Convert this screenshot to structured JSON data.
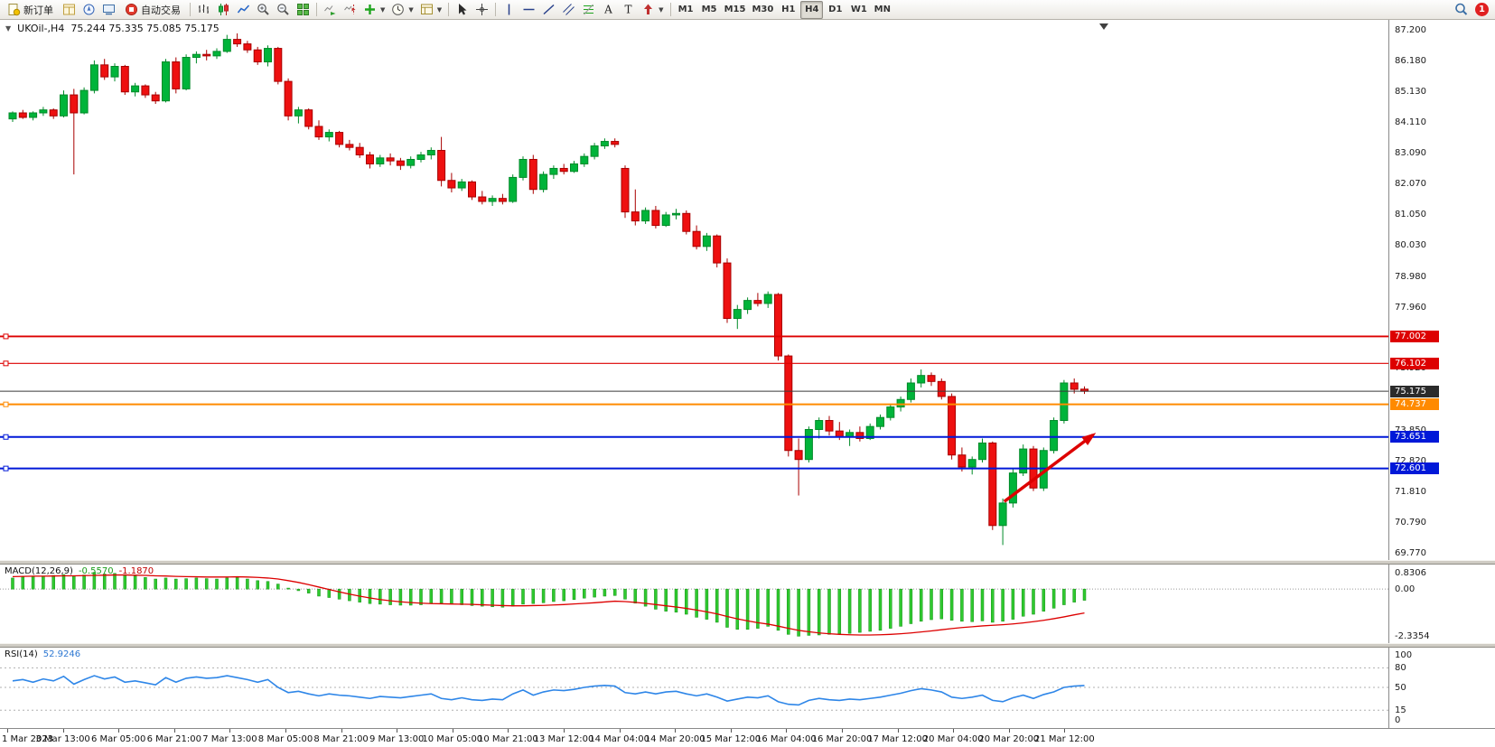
{
  "toolbar": {
    "new_order_label": "新订单",
    "autotrading_label": "自动交易",
    "timeframes": [
      "M1",
      "M5",
      "M15",
      "M30",
      "H1",
      "H4",
      "D1",
      "W1",
      "MN"
    ],
    "active_timeframe": "H4",
    "notification_badge": "1"
  },
  "chart_header": {
    "symbol_period": "UKOil-,H4",
    "ohlc": "75.244 75.335 75.085 75.175"
  },
  "chart_data": {
    "type": "candlestick",
    "symbol": "UKOil-",
    "period": "H4",
    "ylim": [
      69.55,
      87.55
    ],
    "colors": {
      "bull": "#00b43a",
      "bull_stroke": "#008a28",
      "bear": "#ee1010",
      "bear_stroke": "#a80000",
      "arrow": "#dd0000"
    },
    "price_axis_labels": [
      "87.200",
      "86.180",
      "85.130",
      "84.110",
      "83.090",
      "82.070",
      "81.050",
      "80.030",
      "78.980",
      "77.960",
      "76.940",
      "75.920",
      "73.850",
      "72.820",
      "71.810",
      "70.790",
      "69.770"
    ],
    "price_tags": [
      {
        "label": "77.002",
        "value": 77.002,
        "color": "#dd0000"
      },
      {
        "label": "76.102",
        "value": 76.102,
        "color": "#dd0000"
      },
      {
        "label": "75.175",
        "value": 75.175,
        "color": "#2b2b2b"
      },
      {
        "label": "74.737",
        "value": 74.737,
        "color": "#ff8a00"
      },
      {
        "label": "73.651",
        "value": 73.651,
        "color": "#0018d8"
      },
      {
        "label": "72.601",
        "value": 72.601,
        "color": "#0018d8"
      }
    ],
    "hlines": [
      {
        "value": 77.002,
        "color": "#dd0000",
        "width": 1.8
      },
      {
        "value": 76.102,
        "color": "#dd0000",
        "width": 1.2
      },
      {
        "value": 74.737,
        "color": "#ff8a00",
        "width": 2
      },
      {
        "value": 73.651,
        "color": "#0018d8",
        "width": 2
      },
      {
        "value": 72.601,
        "color": "#0018d8",
        "width": 2
      }
    ],
    "current_price_line": {
      "value": 75.175,
      "color": "#3a3a3a"
    },
    "trend_arrow": {
      "from_index": 97.5,
      "from_price": 71.5,
      "to_index": 106.2,
      "to_price": 73.72
    },
    "x_axis_dates": [
      "1 Mar 2023",
      "3 Mar 13:00",
      "6 Mar 05:00",
      "6 Mar 21:00",
      "7 Mar 13:00",
      "8 Mar 05:00",
      "8 Mar 21:00",
      "9 Mar 13:00",
      "10 Mar 05:00",
      "10 Mar 21:00",
      "13 Mar 12:00",
      "14 Mar 04:00",
      "14 Mar 20:00",
      "15 Mar 12:00",
      "16 Mar 04:00",
      "16 Mar 20:00",
      "17 Mar 12:00",
      "20 Mar 04:00",
      "20 Mar 20:00",
      "21 Mar 12:00"
    ],
    "candles": [
      [
        84.25,
        84.5,
        84.15,
        84.45
      ],
      [
        84.45,
        84.55,
        84.25,
        84.3
      ],
      [
        84.3,
        84.5,
        84.2,
        84.45
      ],
      [
        84.45,
        84.65,
        84.35,
        84.55
      ],
      [
        84.55,
        84.6,
        84.25,
        84.35
      ],
      [
        84.35,
        85.2,
        84.3,
        85.05
      ],
      [
        85.05,
        85.25,
        82.4,
        84.45
      ],
      [
        84.45,
        85.3,
        84.4,
        85.2
      ],
      [
        85.2,
        86.2,
        85.1,
        86.05
      ],
      [
        86.05,
        86.25,
        85.55,
        85.65
      ],
      [
        85.65,
        86.1,
        85.5,
        86.0
      ],
      [
        86.0,
        86.05,
        85.05,
        85.15
      ],
      [
        85.15,
        85.45,
        85.0,
        85.35
      ],
      [
        85.35,
        85.4,
        84.95,
        85.05
      ],
      [
        85.05,
        85.15,
        84.75,
        84.85
      ],
      [
        84.85,
        86.25,
        84.8,
        86.15
      ],
      [
        86.15,
        86.3,
        85.1,
        85.25
      ],
      [
        85.25,
        86.4,
        85.2,
        86.3
      ],
      [
        86.3,
        86.5,
        86.1,
        86.4
      ],
      [
        86.4,
        86.55,
        86.2,
        86.35
      ],
      [
        86.35,
        86.6,
        86.25,
        86.5
      ],
      [
        86.5,
        87.05,
        86.45,
        86.9
      ],
      [
        86.9,
        87.1,
        86.65,
        86.75
      ],
      [
        86.75,
        86.85,
        86.45,
        86.55
      ],
      [
        86.55,
        86.65,
        86.05,
        86.15
      ],
      [
        86.15,
        86.7,
        86.0,
        86.6
      ],
      [
        86.6,
        86.65,
        85.4,
        85.5
      ],
      [
        85.5,
        85.6,
        84.2,
        84.35
      ],
      [
        84.35,
        84.65,
        84.1,
        84.55
      ],
      [
        84.55,
        84.6,
        83.9,
        84.0
      ],
      [
        84.0,
        84.2,
        83.55,
        83.65
      ],
      [
        83.65,
        83.9,
        83.5,
        83.8
      ],
      [
        83.8,
        83.85,
        83.3,
        83.4
      ],
      [
        83.4,
        83.55,
        83.2,
        83.3
      ],
      [
        83.3,
        83.45,
        82.95,
        83.05
      ],
      [
        83.05,
        83.15,
        82.6,
        82.75
      ],
      [
        82.75,
        83.05,
        82.65,
        82.95
      ],
      [
        82.95,
        83.1,
        82.7,
        82.85
      ],
      [
        82.85,
        82.95,
        82.55,
        82.7
      ],
      [
        82.7,
        83.0,
        82.6,
        82.9
      ],
      [
        82.9,
        83.15,
        82.8,
        83.05
      ],
      [
        83.05,
        83.3,
        82.9,
        83.2
      ],
      [
        83.2,
        83.65,
        82.0,
        82.2
      ],
      [
        82.2,
        82.45,
        81.8,
        81.95
      ],
      [
        81.95,
        82.25,
        81.85,
        82.15
      ],
      [
        82.15,
        82.2,
        81.55,
        81.65
      ],
      [
        81.65,
        81.85,
        81.4,
        81.5
      ],
      [
        81.5,
        81.7,
        81.35,
        81.6
      ],
      [
        81.6,
        81.75,
        81.4,
        81.5
      ],
      [
        81.5,
        82.4,
        81.45,
        82.3
      ],
      [
        82.3,
        83.0,
        82.2,
        82.9
      ],
      [
        82.9,
        83.05,
        81.75,
        81.9
      ],
      [
        81.9,
        82.5,
        81.8,
        82.4
      ],
      [
        82.4,
        82.7,
        82.25,
        82.6
      ],
      [
        82.6,
        82.75,
        82.4,
        82.5
      ],
      [
        82.5,
        82.85,
        82.45,
        82.75
      ],
      [
        82.75,
        83.1,
        82.65,
        83.0
      ],
      [
        83.0,
        83.45,
        82.9,
        83.35
      ],
      [
        83.35,
        83.6,
        83.25,
        83.5
      ],
      [
        83.5,
        83.6,
        83.3,
        83.4
      ],
      [
        82.6,
        82.7,
        80.95,
        81.15
      ],
      [
        81.15,
        81.9,
        80.7,
        80.85
      ],
      [
        80.85,
        81.3,
        80.75,
        81.2
      ],
      [
        81.2,
        81.35,
        80.6,
        80.7
      ],
      [
        80.7,
        81.15,
        80.65,
        81.05
      ],
      [
        81.05,
        81.25,
        80.9,
        81.1
      ],
      [
        81.1,
        81.2,
        80.4,
        80.5
      ],
      [
        80.5,
        80.7,
        79.9,
        80.0
      ],
      [
        80.0,
        80.45,
        79.85,
        80.35
      ],
      [
        80.35,
        80.4,
        79.3,
        79.45
      ],
      [
        79.45,
        79.6,
        77.45,
        77.6
      ],
      [
        77.6,
        78.05,
        77.25,
        77.9
      ],
      [
        77.9,
        78.3,
        77.75,
        78.2
      ],
      [
        78.2,
        78.45,
        78.0,
        78.1
      ],
      [
        78.1,
        78.5,
        77.95,
        78.4
      ],
      [
        78.4,
        78.45,
        76.2,
        76.35
      ],
      [
        76.35,
        76.4,
        73.0,
        73.2
      ],
      [
        73.2,
        73.6,
        71.7,
        72.9
      ],
      [
        72.9,
        74.0,
        72.8,
        73.9
      ],
      [
        73.9,
        74.3,
        73.6,
        74.2
      ],
      [
        74.2,
        74.35,
        73.7,
        73.85
      ],
      [
        73.85,
        74.15,
        73.55,
        73.65
      ],
      [
        73.65,
        73.9,
        73.35,
        73.8
      ],
      [
        73.8,
        74.0,
        73.5,
        73.6
      ],
      [
        73.6,
        74.1,
        73.55,
        74.0
      ],
      [
        74.0,
        74.4,
        73.9,
        74.3
      ],
      [
        74.3,
        74.75,
        74.2,
        74.65
      ],
      [
        74.65,
        75.0,
        74.5,
        74.9
      ],
      [
        74.9,
        75.6,
        74.8,
        75.45
      ],
      [
        75.45,
        75.9,
        75.3,
        75.7
      ],
      [
        75.7,
        75.8,
        75.35,
        75.5
      ],
      [
        75.5,
        75.6,
        74.9,
        75.0
      ],
      [
        75.0,
        75.1,
        72.9,
        73.05
      ],
      [
        73.05,
        73.3,
        72.5,
        72.65
      ],
      [
        72.65,
        73.0,
        72.4,
        72.9
      ],
      [
        72.9,
        73.6,
        72.8,
        73.45
      ],
      [
        73.45,
        73.5,
        70.55,
        70.7
      ],
      [
        70.7,
        71.6,
        70.05,
        71.45
      ],
      [
        71.45,
        72.6,
        71.3,
        72.45
      ],
      [
        72.45,
        73.4,
        72.35,
        73.25
      ],
      [
        73.25,
        73.35,
        71.85,
        71.95
      ],
      [
        71.95,
        73.3,
        71.85,
        73.2
      ],
      [
        73.2,
        74.3,
        73.1,
        74.2
      ],
      [
        74.2,
        75.55,
        74.1,
        75.45
      ],
      [
        75.45,
        75.6,
        75.1,
        75.24
      ],
      [
        75.244,
        75.335,
        75.085,
        75.175
      ]
    ],
    "macd": {
      "name": "MACD(12,26,9)",
      "main_value": "-0.5570",
      "signal_value": "-1.1870",
      "ylim": [
        -2.55,
        0.95
      ],
      "axis_labels": [
        {
          "label": "0.8306",
          "value": 0.8306
        },
        {
          "label": "0.00",
          "value": 0
        },
        {
          "label": "-2.3354",
          "value": -2.3354
        }
      ],
      "colors": {
        "histogram": "#2fc92f",
        "signal": "#dd0000"
      },
      "histogram": [
        0.55,
        0.6,
        0.62,
        0.65,
        0.68,
        0.72,
        0.65,
        0.7,
        0.83,
        0.75,
        0.78,
        0.72,
        0.65,
        0.58,
        0.5,
        0.55,
        0.5,
        0.52,
        0.55,
        0.52,
        0.5,
        0.55,
        0.58,
        0.5,
        0.42,
        0.38,
        0.25,
        0.05,
        -0.08,
        -0.2,
        -0.35,
        -0.42,
        -0.5,
        -0.58,
        -0.65,
        -0.72,
        -0.75,
        -0.78,
        -0.8,
        -0.8,
        -0.78,
        -0.72,
        -0.7,
        -0.75,
        -0.78,
        -0.82,
        -0.85,
        -0.88,
        -0.9,
        -0.85,
        -0.75,
        -0.72,
        -0.68,
        -0.62,
        -0.58,
        -0.52,
        -0.45,
        -0.4,
        -0.35,
        -0.32,
        -0.5,
        -0.7,
        -0.85,
        -1.0,
        -1.1,
        -1.15,
        -1.25,
        -1.4,
        -1.5,
        -1.65,
        -1.9,
        -2.0,
        -2.0,
        -1.95,
        -1.85,
        -2.05,
        -2.25,
        -2.34,
        -2.3,
        -2.28,
        -2.25,
        -2.22,
        -2.2,
        -2.15,
        -2.1,
        -2.05,
        -1.95,
        -1.85,
        -1.72,
        -1.6,
        -1.52,
        -1.48,
        -1.55,
        -1.6,
        -1.62,
        -1.58,
        -1.65,
        -1.6,
        -1.5,
        -1.35,
        -1.25,
        -1.1,
        -0.95,
        -0.78,
        -0.65,
        -0.557
      ],
      "signal": [
        0.62,
        0.63,
        0.64,
        0.64,
        0.65,
        0.66,
        0.66,
        0.67,
        0.68,
        0.69,
        0.7,
        0.7,
        0.69,
        0.68,
        0.66,
        0.65,
        0.63,
        0.62,
        0.61,
        0.6,
        0.6,
        0.6,
        0.61,
        0.6,
        0.58,
        0.55,
        0.5,
        0.42,
        0.33,
        0.22,
        0.1,
        -0.02,
        -0.14,
        -0.25,
        -0.35,
        -0.44,
        -0.52,
        -0.58,
        -0.63,
        -0.67,
        -0.7,
        -0.72,
        -0.73,
        -0.74,
        -0.75,
        -0.76,
        -0.78,
        -0.8,
        -0.82,
        -0.83,
        -0.83,
        -0.82,
        -0.81,
        -0.79,
        -0.77,
        -0.74,
        -0.71,
        -0.68,
        -0.64,
        -0.6,
        -0.62,
        -0.66,
        -0.71,
        -0.77,
        -0.83,
        -0.89,
        -0.96,
        -1.04,
        -1.13,
        -1.23,
        -1.36,
        -1.48,
        -1.58,
        -1.67,
        -1.74,
        -1.84,
        -1.95,
        -2.05,
        -2.12,
        -2.18,
        -2.22,
        -2.25,
        -2.27,
        -2.28,
        -2.28,
        -2.27,
        -2.25,
        -2.22,
        -2.18,
        -2.13,
        -2.08,
        -2.02,
        -1.96,
        -1.91,
        -1.87,
        -1.83,
        -1.8,
        -1.77,
        -1.73,
        -1.68,
        -1.62,
        -1.55,
        -1.47,
        -1.38,
        -1.28,
        -1.187
      ]
    },
    "rsi": {
      "name": "RSI(14)",
      "value": "52.9246",
      "ylim": [
        0,
        100
      ],
      "color": "#2e86e8",
      "axis_labels": [
        {
          "label": "100",
          "value": 100
        },
        {
          "label": "80",
          "value": 80
        },
        {
          "label": "50",
          "value": 50
        },
        {
          "label": "15",
          "value": 15
        },
        {
          "label": "0",
          "value": 0
        }
      ],
      "levels": [
        80,
        50,
        15
      ],
      "values": [
        60,
        62,
        58,
        63,
        60,
        67,
        55,
        62,
        68,
        63,
        66,
        58,
        60,
        57,
        54,
        65,
        58,
        64,
        66,
        64,
        65,
        68,
        65,
        62,
        58,
        62,
        50,
        42,
        44,
        40,
        37,
        40,
        38,
        37,
        35,
        33,
        36,
        35,
        34,
        36,
        38,
        40,
        33,
        31,
        34,
        31,
        30,
        32,
        31,
        40,
        46,
        38,
        43,
        46,
        45,
        47,
        50,
        52,
        53,
        52,
        42,
        40,
        43,
        40,
        43,
        44,
        40,
        37,
        40,
        35,
        29,
        32,
        35,
        34,
        37,
        28,
        24,
        23,
        30,
        33,
        31,
        30,
        32,
        31,
        33,
        35,
        38,
        41,
        45,
        48,
        46,
        43,
        35,
        33,
        35,
        38,
        30,
        28,
        34,
        38,
        33,
        39,
        43,
        50,
        52,
        52.92
      ]
    }
  }
}
